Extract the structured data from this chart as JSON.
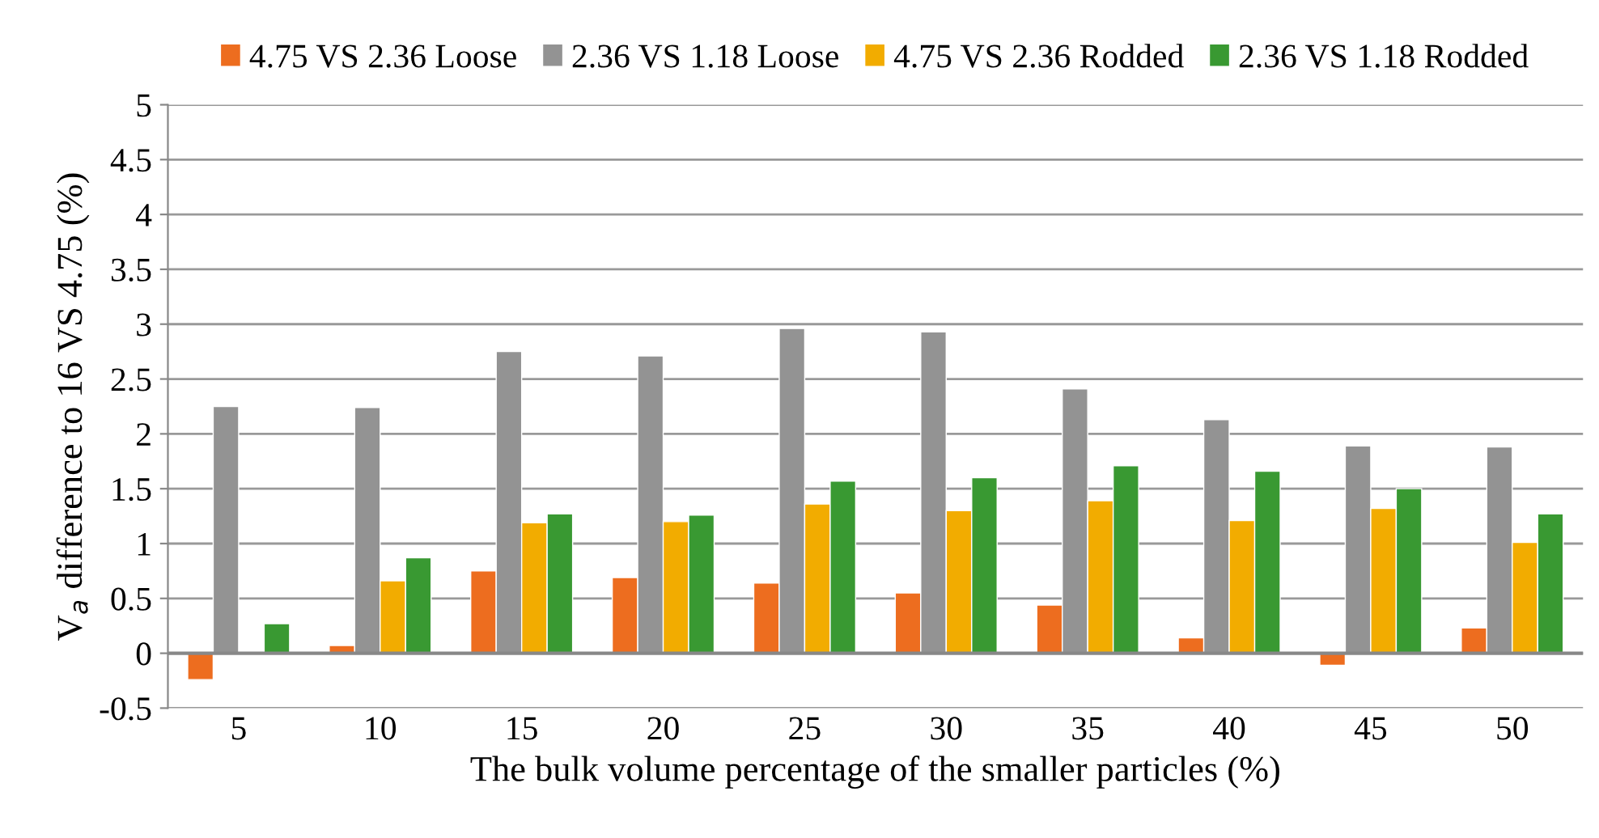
{
  "chart_data": {
    "type": "bar",
    "xlabel": "The bulk volume percentage of the smaller particles (%)",
    "ylabel": "V$_{a}$ difference to 16 VS 4.75 (%)",
    "categories": [
      "5",
      "10",
      "15",
      "20",
      "25",
      "30",
      "35",
      "40",
      "45",
      "50"
    ],
    "series": [
      {
        "name": "4.75 VS 2.36 Loose",
        "color": "#ed6d1f",
        "values": [
          -0.24,
          0.07,
          0.75,
          0.69,
          0.64,
          0.55,
          0.44,
          0.14,
          -0.11,
          0.23
        ]
      },
      {
        "name": "2.36 VS 1.18 Loose",
        "color": "#939393",
        "values": [
          2.25,
          2.24,
          2.75,
          2.71,
          2.96,
          2.93,
          2.41,
          2.13,
          1.89,
          1.88
        ]
      },
      {
        "name": "4.75 VS 2.36 Rodded",
        "color": "#f2ac00",
        "values": [
          null,
          0.66,
          1.19,
          1.2,
          1.36,
          1.3,
          1.39,
          1.21,
          1.32,
          1.01
        ]
      },
      {
        "name": "2.36 VS 1.18 Rodded",
        "color": "#399932",
        "values": [
          0.27,
          0.87,
          1.27,
          1.26,
          1.57,
          1.6,
          1.71,
          1.66,
          1.5,
          1.27
        ]
      }
    ],
    "ylim": [
      -0.5,
      5
    ],
    "yticks": [
      -0.5,
      0,
      0.5,
      1,
      1.5,
      2,
      2.5,
      3,
      3.5,
      4,
      4.5,
      5
    ],
    "grid": "y",
    "legend": "top"
  }
}
